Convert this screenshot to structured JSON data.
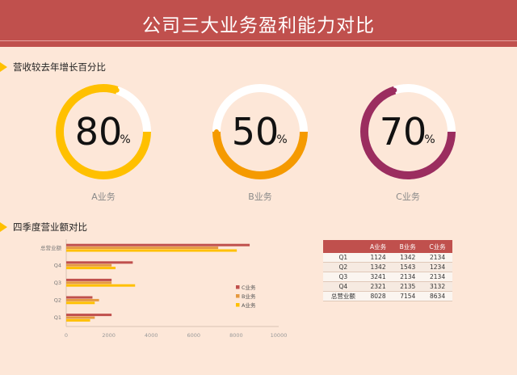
{
  "header": {
    "title": "公司三大业务盈利能力对比"
  },
  "section1": {
    "title": "营收较去年增长百分比"
  },
  "section2": {
    "title": "四季度营业额对比"
  },
  "rings": [
    {
      "value": "80",
      "unit": "%",
      "fraction": 0.8,
      "label": "A业务",
      "color": "#ffc000"
    },
    {
      "value": "50",
      "unit": "%",
      "fraction": 0.5,
      "label": "B业务",
      "color": "#f59a00"
    },
    {
      "value": "70",
      "unit": "%",
      "fraction": 0.7,
      "label": "C业务",
      "color": "#9b2d5f"
    }
  ],
  "colors": {
    "header": "#c0504d",
    "track": "#ffffff",
    "C": "#c0504d",
    "B": "#e59940",
    "A": "#ffc000"
  },
  "chart_data": {
    "type": "bar",
    "orientation": "horizontal",
    "categories": [
      "Q1",
      "Q2",
      "Q3",
      "Q4",
      "总营业额"
    ],
    "series": [
      {
        "name": "C业务",
        "values": [
          2134,
          1234,
          2134,
          3132,
          8634
        ]
      },
      {
        "name": "B业务",
        "values": [
          1342,
          1543,
          2134,
          2135,
          7154
        ]
      },
      {
        "name": "A业务",
        "values": [
          1124,
          1342,
          3241,
          2321,
          8028
        ]
      }
    ],
    "xlim": [
      0,
      10000
    ],
    "xticks": [
      "0",
      "2000",
      "4000",
      "6000",
      "8000",
      "10000"
    ],
    "legend": "right"
  },
  "table": {
    "headers": [
      "",
      "A业务",
      "B业务",
      "C业务"
    ],
    "rows": [
      [
        "Q1",
        "1124",
        "1342",
        "2134"
      ],
      [
        "Q2",
        "1342",
        "1543",
        "1234"
      ],
      [
        "Q3",
        "3241",
        "2134",
        "2134"
      ],
      [
        "Q4",
        "2321",
        "2135",
        "3132"
      ],
      [
        "总营业额",
        "8028",
        "7154",
        "8634"
      ]
    ]
  }
}
